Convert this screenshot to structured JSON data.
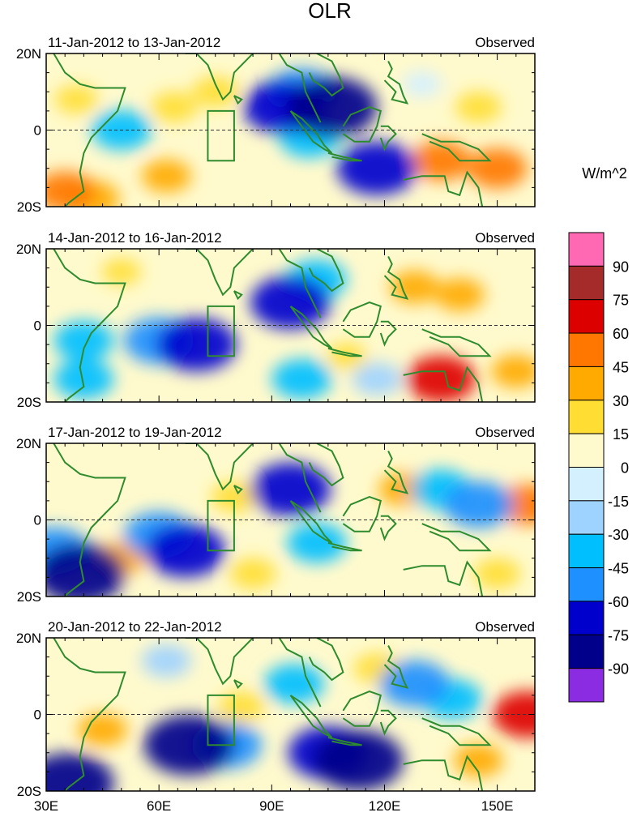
{
  "chart_data": {
    "type": "heatmap",
    "title": "OLR",
    "units_label": "W/m^2",
    "x_ticks": [
      "30E",
      "60E",
      "90E",
      "120E",
      "150E"
    ],
    "x_tick_values": [
      30,
      60,
      90,
      120,
      150
    ],
    "xlim": [
      30,
      160
    ],
    "ylim": [
      -20,
      20
    ],
    "y_ticks": [
      "20N",
      "0",
      "20S"
    ],
    "y_tick_values": [
      20,
      0,
      -20
    ],
    "colorbar": {
      "levels": [
        -90,
        -75,
        -60,
        -45,
        -30,
        -15,
        0,
        15,
        30,
        45,
        60,
        75,
        90
      ],
      "level_labels": [
        "-90",
        "-75",
        "-60",
        "-45",
        "-30",
        "-15",
        "0",
        "15",
        "30",
        "45",
        "60",
        "75",
        "90"
      ],
      "colors": [
        "#8b2be2",
        "#00008b",
        "#0000cd",
        "#1e90ff",
        "#00bfff",
        "#9fd3ff",
        "#d4f0ff",
        "#fffacd",
        "#ffdd33",
        "#ffaa00",
        "#ff7700",
        "#dd0000",
        "#a52a2a",
        "#ff69b4"
      ]
    },
    "panels": [
      {
        "period": "11-Jan-2012 to 13-Jan-2012",
        "label": "Observed",
        "cells": [
          {
            "lon": 35,
            "lat": -16,
            "value": 45
          },
          {
            "lon": 42,
            "lat": -18,
            "value": 40
          },
          {
            "lon": 38,
            "lat": 8,
            "value": 20
          },
          {
            "lon": 50,
            "lat": 0,
            "value": -45
          },
          {
            "lon": 62,
            "lat": -12,
            "value": 30
          },
          {
            "lon": 64,
            "lat": 6,
            "value": 25
          },
          {
            "lon": 75,
            "lat": 10,
            "value": 25
          },
          {
            "lon": 93,
            "lat": 6,
            "value": -75
          },
          {
            "lon": 98,
            "lat": 10,
            "value": -60
          },
          {
            "lon": 106,
            "lat": 6,
            "value": -90
          },
          {
            "lon": 100,
            "lat": -2,
            "value": -45
          },
          {
            "lon": 118,
            "lat": -10,
            "value": -75
          },
          {
            "lon": 135,
            "lat": -8,
            "value": 45
          },
          {
            "lon": 150,
            "lat": -10,
            "value": 45
          },
          {
            "lon": 145,
            "lat": 6,
            "value": 25
          },
          {
            "lon": 130,
            "lat": 12,
            "value": -15
          }
        ]
      },
      {
        "period": "14-Jan-2012 to 16-Jan-2012",
        "label": "Observed",
        "cells": [
          {
            "lon": 40,
            "lat": -4,
            "value": -45
          },
          {
            "lon": 70,
            "lat": -5,
            "value": -75
          },
          {
            "lon": 60,
            "lat": -4,
            "value": -60
          },
          {
            "lon": 95,
            "lat": 6,
            "value": -75
          },
          {
            "lon": 102,
            "lat": 12,
            "value": -45
          },
          {
            "lon": 128,
            "lat": 10,
            "value": 30
          },
          {
            "lon": 140,
            "lat": 8,
            "value": 30
          },
          {
            "lon": 135,
            "lat": -14,
            "value": 60
          },
          {
            "lon": 155,
            "lat": -12,
            "value": 30
          },
          {
            "lon": 40,
            "lat": -14,
            "value": -45
          },
          {
            "lon": 98,
            "lat": -14,
            "value": -45
          },
          {
            "lon": 118,
            "lat": -14,
            "value": -30
          },
          {
            "lon": 110,
            "lat": -8,
            "value": 15
          },
          {
            "lon": 50,
            "lat": 14,
            "value": 15
          }
        ]
      },
      {
        "period": "17-Jan-2012 to 19-Jan-2012",
        "label": "Observed",
        "cells": [
          {
            "lon": 39,
            "lat": -14,
            "value": -90
          },
          {
            "lon": 32,
            "lat": -8,
            "value": -60
          },
          {
            "lon": 67,
            "lat": -8,
            "value": -75
          },
          {
            "lon": 60,
            "lat": -4,
            "value": -60
          },
          {
            "lon": 95,
            "lat": 8,
            "value": -75
          },
          {
            "lon": 102,
            "lat": -6,
            "value": -45
          },
          {
            "lon": 135,
            "lat": 8,
            "value": -45
          },
          {
            "lon": 145,
            "lat": 4,
            "value": -60
          },
          {
            "lon": 125,
            "lat": 8,
            "value": 30
          },
          {
            "lon": 158,
            "lat": 4,
            "value": 45
          },
          {
            "lon": 80,
            "lat": 6,
            "value": 25
          },
          {
            "lon": 50,
            "lat": -10,
            "value": 30
          },
          {
            "lon": 85,
            "lat": -14,
            "value": 25
          },
          {
            "lon": 150,
            "lat": -14,
            "value": 25
          }
        ]
      },
      {
        "period": "20-Jan-2012 to 22-Jan-2012",
        "label": "Observed",
        "cells": [
          {
            "lon": 36,
            "lat": -18,
            "value": -90
          },
          {
            "lon": 68,
            "lat": -8,
            "value": -90
          },
          {
            "lon": 78,
            "lat": -8,
            "value": -60
          },
          {
            "lon": 105,
            "lat": -10,
            "value": -75
          },
          {
            "lon": 113,
            "lat": -12,
            "value": -90
          },
          {
            "lon": 96,
            "lat": 8,
            "value": -45
          },
          {
            "lon": 128,
            "lat": 8,
            "value": -60
          },
          {
            "lon": 138,
            "lat": 4,
            "value": -45
          },
          {
            "lon": 158,
            "lat": 0,
            "value": 60
          },
          {
            "lon": 45,
            "lat": -4,
            "value": 30
          },
          {
            "lon": 82,
            "lat": 2,
            "value": 25
          },
          {
            "lon": 62,
            "lat": 14,
            "value": -30
          },
          {
            "lon": 118,
            "lat": 12,
            "value": 25
          },
          {
            "lon": 145,
            "lat": -12,
            "value": 30
          }
        ]
      }
    ]
  }
}
